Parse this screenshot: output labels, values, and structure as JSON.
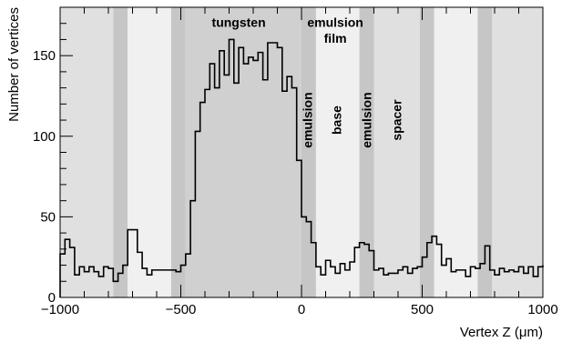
{
  "chart_data": {
    "type": "bar",
    "xlabel": "Vertex Z (μm)",
    "ylabel": "Number of vertices",
    "xlim": [
      -1000,
      1000
    ],
    "ylim": [
      0,
      180
    ],
    "x_ticks": [
      -1000,
      -500,
      0,
      500,
      1000
    ],
    "x_tick_labels": [
      "−1000",
      "−500",
      "0",
      "500",
      "1000"
    ],
    "y_ticks": [
      0,
      50,
      100,
      150
    ],
    "y_tick_labels": [
      "0",
      "50",
      "100",
      "150"
    ],
    "grid": false,
    "legend": "none",
    "bin_edges_start": -1000,
    "bin_width": 20,
    "values": [
      27,
      36,
      31,
      14,
      19,
      16,
      19,
      16,
      13,
      19,
      18,
      10,
      15,
      20,
      42,
      42,
      28,
      18,
      14,
      17,
      17,
      17,
      17,
      17,
      16,
      20,
      27,
      60,
      103,
      121,
      129,
      145,
      130,
      153,
      138,
      160,
      133,
      155,
      145,
      149,
      147,
      152,
      135,
      158,
      158,
      155,
      128,
      137,
      130,
      85,
      50,
      47,
      34,
      19,
      14,
      23,
      19,
      15,
      21,
      17,
      22,
      31,
      34,
      33,
      29,
      17,
      18,
      14,
      15,
      15,
      17,
      19,
      15,
      18,
      19,
      25,
      34,
      38,
      33,
      20,
      24,
      16,
      17,
      17,
      13,
      19,
      18,
      21,
      32,
      17,
      14,
      18,
      16,
      17,
      16,
      19,
      15,
      19,
      13,
      19,
      20
    ],
    "regions": [
      {
        "x0": -1000,
        "x1": -780,
        "shade": "#e0e0e0"
      },
      {
        "x0": -780,
        "x1": -720,
        "shade": "#c6c6c6"
      },
      {
        "x0": -720,
        "x1": -540,
        "shade": "#f0f0f0"
      },
      {
        "x0": -540,
        "x1": -480,
        "shade": "#c6c6c6"
      },
      {
        "x0": -480,
        "x1": 0,
        "shade": "#d0d0d0"
      },
      {
        "x0": 0,
        "x1": 60,
        "shade": "#c6c6c6"
      },
      {
        "x0": 60,
        "x1": 240,
        "shade": "#f0f0f0"
      },
      {
        "x0": 240,
        "x1": 300,
        "shade": "#c6c6c6"
      },
      {
        "x0": 300,
        "x1": 490,
        "shade": "#e0e0e0"
      },
      {
        "x0": 490,
        "x1": 550,
        "shade": "#c6c6c6"
      },
      {
        "x0": 550,
        "x1": 730,
        "shade": "#f0f0f0"
      },
      {
        "x0": 730,
        "x1": 790,
        "shade": "#c6c6c6"
      },
      {
        "x0": 790,
        "x1": 1000,
        "shade": "#e0e0e0"
      }
    ],
    "annotations": [
      {
        "text": "tungsten",
        "x": -260,
        "y": 170,
        "rotate": false
      },
      {
        "text": "emulsion",
        "x": 140,
        "y": 170,
        "rotate": false
      },
      {
        "text": "film",
        "x": 140,
        "y": 160,
        "rotate": false
      },
      {
        "text": "emulsion",
        "x": 30,
        "y": 110,
        "rotate": true
      },
      {
        "text": "base",
        "x": 150,
        "y": 110,
        "rotate": true
      },
      {
        "text": "emulsion",
        "x": 275,
        "y": 110,
        "rotate": true
      },
      {
        "text": "spacer",
        "x": 400,
        "y": 110,
        "rotate": true
      }
    ]
  }
}
